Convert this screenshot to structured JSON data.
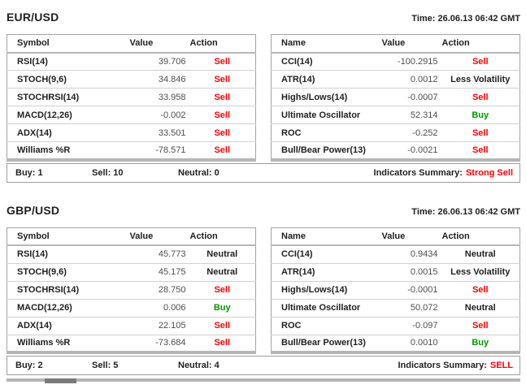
{
  "colors": {
    "sell": "#ff0000",
    "buy": "#009900",
    "neutral": "#1f1f1f",
    "border": "#a3a3a3"
  },
  "sections": [
    {
      "pair": "EUR/USD",
      "time": "Time: 26.06.13 06:42 GMT",
      "left": {
        "headers": [
          "Symbol",
          "Value",
          "Action"
        ],
        "rows": [
          {
            "name": "RSI(14)",
            "value": "39.706",
            "action": "Sell",
            "action_type": "sell"
          },
          {
            "name": "STOCH(9,6)",
            "value": "34.846",
            "action": "Sell",
            "action_type": "sell"
          },
          {
            "name": "STOCHRSI(14)",
            "value": "33.958",
            "action": "Sell",
            "action_type": "sell"
          },
          {
            "name": "MACD(12,26)",
            "value": "-0.002",
            "action": "Sell",
            "action_type": "sell"
          },
          {
            "name": "ADX(14)",
            "value": "33.501",
            "action": "Sell",
            "action_type": "sell"
          },
          {
            "name": "Williams %R",
            "value": "-78.571",
            "action": "Sell",
            "action_type": "sell"
          }
        ]
      },
      "right": {
        "headers": [
          "Name",
          "Value",
          "Action"
        ],
        "rows": [
          {
            "name": "CCI(14)",
            "value": "-100.2915",
            "action": "Sell",
            "action_type": "sell"
          },
          {
            "name": "ATR(14)",
            "value": "0.0012",
            "action": "Less Volatility",
            "action_type": "volatility"
          },
          {
            "name": "Highs/Lows(14)",
            "value": "-0.0007",
            "action": "Sell",
            "action_type": "sell"
          },
          {
            "name": "Ultimate Oscillator",
            "value": "52.314",
            "action": "Buy",
            "action_type": "buy"
          },
          {
            "name": "ROC",
            "value": "-0.252",
            "action": "Sell",
            "action_type": "sell"
          },
          {
            "name": "Bull/Bear Power(13)",
            "value": "-0.0021",
            "action": "Sell",
            "action_type": "sell"
          }
        ]
      },
      "summary": {
        "counts": [
          "Buy: 1",
          "Sell: 10",
          "Neutral: 0"
        ],
        "label": "Indicators Summary:",
        "value": "Strong Sell",
        "value_type": "sell"
      }
    },
    {
      "pair": "GBP/USD",
      "time": "Time: 26.06.13 06:42 GMT",
      "left": {
        "headers": [
          "Symbol",
          "Value",
          "Action"
        ],
        "rows": [
          {
            "name": "RSI(14)",
            "value": "45.773",
            "action": "Neutral",
            "action_type": "neutral"
          },
          {
            "name": "STOCH(9,6)",
            "value": "45.175",
            "action": "Neutral",
            "action_type": "neutral"
          },
          {
            "name": "STOCHRSI(14)",
            "value": "28.750",
            "action": "Sell",
            "action_type": "sell"
          },
          {
            "name": "MACD(12,26)",
            "value": "0.006",
            "action": "Buy",
            "action_type": "buy"
          },
          {
            "name": "ADX(14)",
            "value": "22.105",
            "action": "Sell",
            "action_type": "sell"
          },
          {
            "name": "Williams %R",
            "value": "-73.684",
            "action": "Sell",
            "action_type": "sell"
          }
        ]
      },
      "right": {
        "headers": [
          "Name",
          "Value",
          "Action"
        ],
        "rows": [
          {
            "name": "CCI(14)",
            "value": "0.9434",
            "action": "Neutral",
            "action_type": "neutral"
          },
          {
            "name": "ATR(14)",
            "value": "0.0015",
            "action": "Less Volatility",
            "action_type": "volatility"
          },
          {
            "name": "Highs/Lows(14)",
            "value": "-0.0001",
            "action": "Sell",
            "action_type": "sell"
          },
          {
            "name": "Ultimate Oscillator",
            "value": "50.072",
            "action": "Neutral",
            "action_type": "neutral"
          },
          {
            "name": "ROC",
            "value": "-0.097",
            "action": "Sell",
            "action_type": "sell"
          },
          {
            "name": "Bull/Bear Power(13)",
            "value": "0.0010",
            "action": "Buy",
            "action_type": "buy"
          }
        ]
      },
      "summary": {
        "counts": [
          "Buy: 2",
          "Sell: 5",
          "Neutral: 4"
        ],
        "label": "Indicators Summary:",
        "value": "SELL",
        "value_type": "sell"
      }
    }
  ]
}
